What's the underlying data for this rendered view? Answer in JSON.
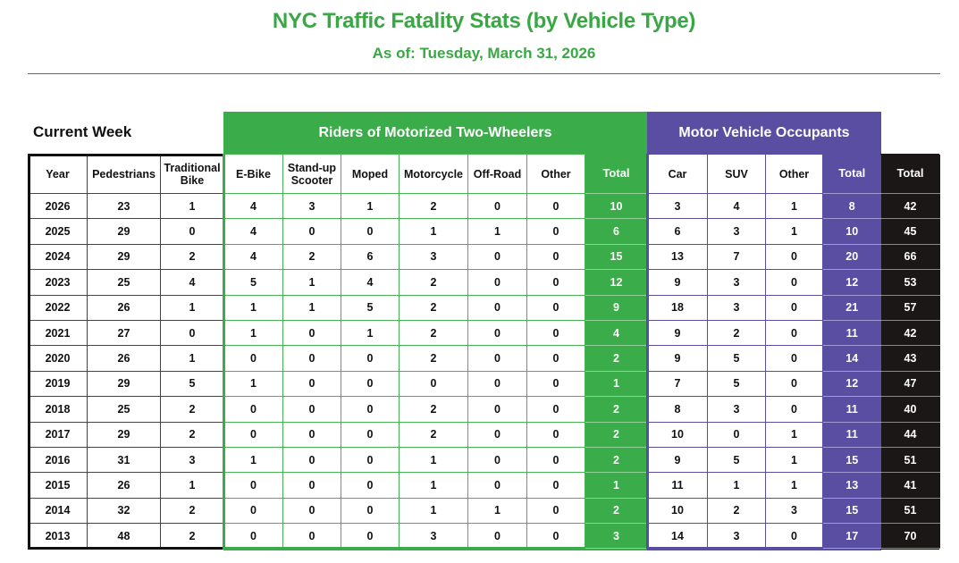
{
  "header": {
    "title": "NYC Traffic Fatality Stats (by Vehicle Type)",
    "subtitle": "As of: Tuesday, March 31, 2026"
  },
  "section_label": "Current Week",
  "groups": {
    "motorized_two_wheelers": "Riders of Motorized Two-Wheelers",
    "motor_vehicle_occupants": "Motor Vehicle Occupants"
  },
  "colors": {
    "green": "#3aac49",
    "purple": "#5a4ea3",
    "black": "#1b1717"
  },
  "columns": {
    "year": "Year",
    "pedestrians": "Pedestrians",
    "traditional_bike": "Traditional Bike",
    "ebike": "E-Bike",
    "standup_scooter": "Stand-up Scooter",
    "moped": "Moped",
    "motorcycle": "Motorcycle",
    "offroad": "Off-Road",
    "tw_other": "Other",
    "tw_total": "Total",
    "car": "Car",
    "suv": "SUV",
    "mv_other": "Other",
    "mv_total": "Total",
    "grand_total": "Total"
  },
  "rows": [
    {
      "year": "2026",
      "ped": "23",
      "bike": "1",
      "ebike": "4",
      "scooter": "3",
      "moped": "1",
      "moto": "2",
      "offroad": "0",
      "tw_other": "0",
      "tw_total": "10",
      "car": "3",
      "suv": "4",
      "mv_other": "1",
      "mv_total": "8",
      "total": "42"
    },
    {
      "year": "2025",
      "ped": "29",
      "bike": "0",
      "ebike": "4",
      "scooter": "0",
      "moped": "0",
      "moto": "1",
      "offroad": "1",
      "tw_other": "0",
      "tw_total": "6",
      "car": "6",
      "suv": "3",
      "mv_other": "1",
      "mv_total": "10",
      "total": "45"
    },
    {
      "year": "2024",
      "ped": "29",
      "bike": "2",
      "ebike": "4",
      "scooter": "2",
      "moped": "6",
      "moto": "3",
      "offroad": "0",
      "tw_other": "0",
      "tw_total": "15",
      "car": "13",
      "suv": "7",
      "mv_other": "0",
      "mv_total": "20",
      "total": "66"
    },
    {
      "year": "2023",
      "ped": "25",
      "bike": "4",
      "ebike": "5",
      "scooter": "1",
      "moped": "4",
      "moto": "2",
      "offroad": "0",
      "tw_other": "0",
      "tw_total": "12",
      "car": "9",
      "suv": "3",
      "mv_other": "0",
      "mv_total": "12",
      "total": "53"
    },
    {
      "year": "2022",
      "ped": "26",
      "bike": "1",
      "ebike": "1",
      "scooter": "1",
      "moped": "5",
      "moto": "2",
      "offroad": "0",
      "tw_other": "0",
      "tw_total": "9",
      "car": "18",
      "suv": "3",
      "mv_other": "0",
      "mv_total": "21",
      "total": "57"
    },
    {
      "year": "2021",
      "ped": "27",
      "bike": "0",
      "ebike": "1",
      "scooter": "0",
      "moped": "1",
      "moto": "2",
      "offroad": "0",
      "tw_other": "0",
      "tw_total": "4",
      "car": "9",
      "suv": "2",
      "mv_other": "0",
      "mv_total": "11",
      "total": "42"
    },
    {
      "year": "2020",
      "ped": "26",
      "bike": "1",
      "ebike": "0",
      "scooter": "0",
      "moped": "0",
      "moto": "2",
      "offroad": "0",
      "tw_other": "0",
      "tw_total": "2",
      "car": "9",
      "suv": "5",
      "mv_other": "0",
      "mv_total": "14",
      "total": "43"
    },
    {
      "year": "2019",
      "ped": "29",
      "bike": "5",
      "ebike": "1",
      "scooter": "0",
      "moped": "0",
      "moto": "0",
      "offroad": "0",
      "tw_other": "0",
      "tw_total": "1",
      "car": "7",
      "suv": "5",
      "mv_other": "0",
      "mv_total": "12",
      "total": "47"
    },
    {
      "year": "2018",
      "ped": "25",
      "bike": "2",
      "ebike": "0",
      "scooter": "0",
      "moped": "0",
      "moto": "2",
      "offroad": "0",
      "tw_other": "0",
      "tw_total": "2",
      "car": "8",
      "suv": "3",
      "mv_other": "0",
      "mv_total": "11",
      "total": "40"
    },
    {
      "year": "2017",
      "ped": "29",
      "bike": "2",
      "ebike": "0",
      "scooter": "0",
      "moped": "0",
      "moto": "2",
      "offroad": "0",
      "tw_other": "0",
      "tw_total": "2",
      "car": "10",
      "suv": "0",
      "mv_other": "1",
      "mv_total": "11",
      "total": "44"
    },
    {
      "year": "2016",
      "ped": "31",
      "bike": "3",
      "ebike": "1",
      "scooter": "0",
      "moped": "0",
      "moto": "1",
      "offroad": "0",
      "tw_other": "0",
      "tw_total": "2",
      "car": "9",
      "suv": "5",
      "mv_other": "1",
      "mv_total": "15",
      "total": "51"
    },
    {
      "year": "2015",
      "ped": "26",
      "bike": "1",
      "ebike": "0",
      "scooter": "0",
      "moped": "0",
      "moto": "1",
      "offroad": "0",
      "tw_other": "0",
      "tw_total": "1",
      "car": "11",
      "suv": "1",
      "mv_other": "1",
      "mv_total": "13",
      "total": "41"
    },
    {
      "year": "2014",
      "ped": "32",
      "bike": "2",
      "ebike": "0",
      "scooter": "0",
      "moped": "0",
      "moto": "1",
      "offroad": "1",
      "tw_other": "0",
      "tw_total": "2",
      "car": "10",
      "suv": "2",
      "mv_other": "3",
      "mv_total": "15",
      "total": "51"
    },
    {
      "year": "2013",
      "ped": "48",
      "bike": "2",
      "ebike": "0",
      "scooter": "0",
      "moped": "0",
      "moto": "3",
      "offroad": "0",
      "tw_other": "0",
      "tw_total": "3",
      "car": "14",
      "suv": "3",
      "mv_other": "0",
      "mv_total": "17",
      "total": "70"
    }
  ]
}
